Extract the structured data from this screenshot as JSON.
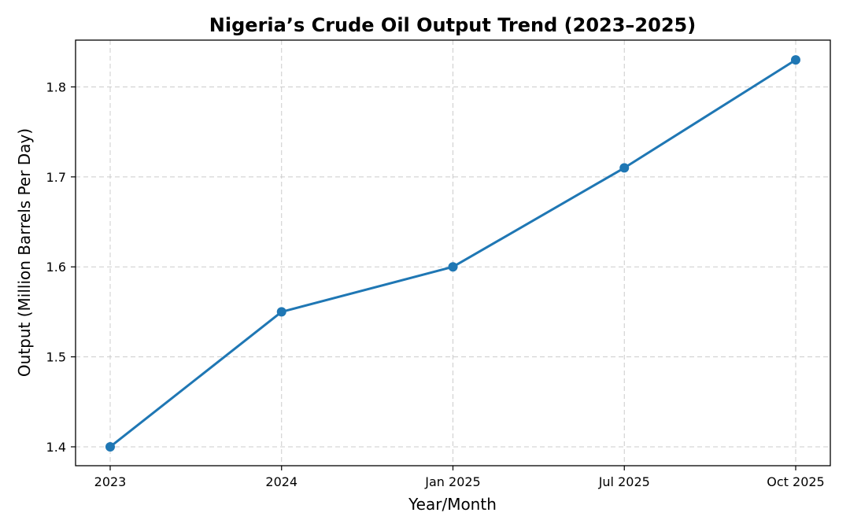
{
  "chart_data": {
    "type": "line",
    "title": "Nigeria’s Crude Oil Output Trend (2023–2025)",
    "xlabel": "Year/Month",
    "ylabel": "Output (Million Barrels Per Day)",
    "categories": [
      "2023",
      "2024",
      "Jan 2025",
      "Jul 2025",
      "Oct 2025"
    ],
    "series": [
      {
        "values": [
          1.4,
          1.55,
          1.6,
          1.71,
          1.83
        ]
      }
    ],
    "yticks": [
      "1.4",
      "1.5",
      "1.6",
      "1.7",
      "1.8"
    ],
    "ylim": [
      1.379,
      1.852
    ],
    "grid": true,
    "line_color": "#1f77b4"
  }
}
